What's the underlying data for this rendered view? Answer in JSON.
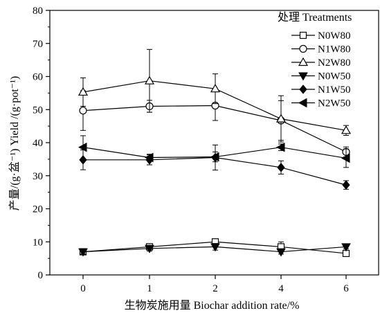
{
  "chart_data": {
    "type": "line",
    "xlabel": "生物炭施用量 Biochar addition rate/%",
    "ylabel": "产量/(g·盆⁻¹) Yield /(g·pot⁻¹)",
    "categories": [
      "0",
      "1",
      "2",
      "4",
      "6"
    ],
    "ylim": [
      0,
      80
    ],
    "yticks": [
      0,
      10,
      20,
      30,
      40,
      50,
      60,
      70,
      80
    ],
    "grid": false,
    "legend": {
      "title": "处理 Treatments",
      "position": "top-right"
    },
    "series": [
      {
        "name": "N0W80",
        "marker": "square-open",
        "values": [
          7.0,
          8.5,
          10.0,
          8.5,
          6.5
        ],
        "errors": [
          0.6,
          0.8,
          0.8,
          1.5,
          0.8
        ]
      },
      {
        "name": "N1W80",
        "marker": "circle-open",
        "values": [
          49.7,
          51.0,
          51.2,
          46.7,
          37.2
        ],
        "errors": [
          6.0,
          1.8,
          4.5,
          6.0,
          1.5
        ]
      },
      {
        "name": "N2W80",
        "marker": "triangle-up-open",
        "values": [
          55.3,
          58.7,
          56.3,
          47.2,
          43.7
        ],
        "errors": [
          4.3,
          9.5,
          4.5,
          7.0,
          1.5
        ]
      },
      {
        "name": "N0W50",
        "marker": "triangle-down",
        "values": [
          7.0,
          8.0,
          8.5,
          7.0,
          8.5
        ],
        "errors": [
          0.7,
          0.8,
          1.0,
          0.7,
          0.6
        ]
      },
      {
        "name": "N1W50",
        "marker": "diamond",
        "values": [
          34.8,
          34.8,
          35.5,
          32.5,
          27.2
        ],
        "errors": [
          3.0,
          1.5,
          3.8,
          2.0,
          1.3
        ]
      },
      {
        "name": "N2W50",
        "marker": "triangle-left",
        "values": [
          38.6,
          35.5,
          35.7,
          38.6,
          35.3
        ],
        "errors": [
          3.5,
          1.0,
          1.5,
          1.0,
          2.8
        ]
      }
    ]
  }
}
